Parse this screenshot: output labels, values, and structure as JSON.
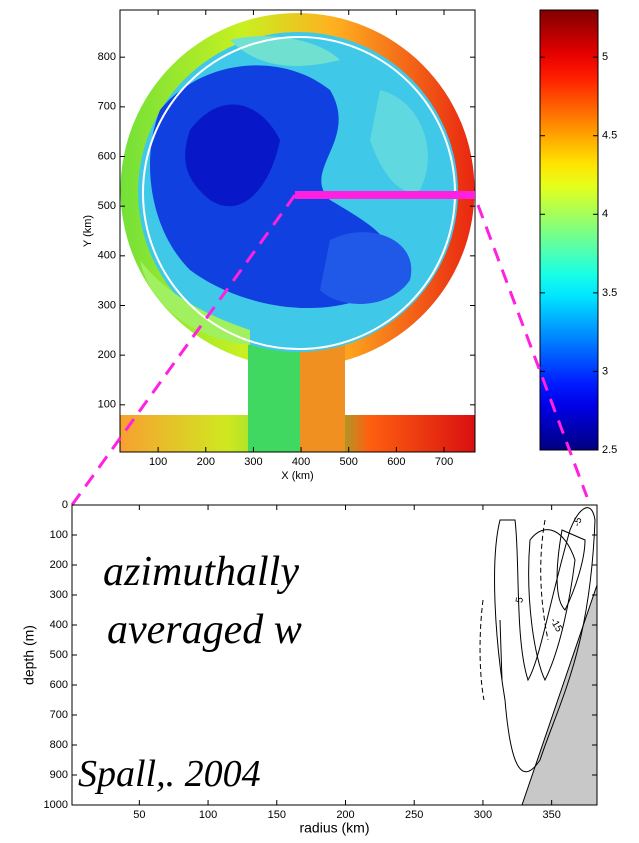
{
  "chart_data": [
    {
      "type": "contour-map",
      "xlabel": "X (km)",
      "ylabel": "Y (km)",
      "xlim": [
        20,
        765
      ],
      "ylim": [
        5,
        895
      ],
      "xticks": [
        100,
        200,
        300,
        400,
        500,
        600,
        700
      ],
      "yticks": [
        100,
        200,
        300,
        400,
        500,
        600,
        700,
        800
      ],
      "colorbar": {
        "clim": [
          2.5,
          5.3
        ],
        "ticks": [
          2.5,
          3,
          3.5,
          4,
          4.5,
          5
        ],
        "colormap": "jet"
      }
    },
    {
      "type": "contour-section",
      "xlabel": "radius (km)",
      "ylabel": "depth (m)",
      "xlim": [
        1,
        383
      ],
      "ylim": [
        0,
        1000
      ],
      "yreverse": true,
      "xticks": [
        50,
        100,
        150,
        200,
        250,
        300,
        350
      ],
      "yticks": [
        0,
        100,
        200,
        300,
        400,
        500,
        600,
        700,
        800,
        900,
        1000
      ],
      "contour_labels": [
        "5",
        "-5",
        "-15"
      ]
    }
  ],
  "annotations": [
    "azimuthally",
    "averaged w",
    "Spall,. 2004"
  ]
}
